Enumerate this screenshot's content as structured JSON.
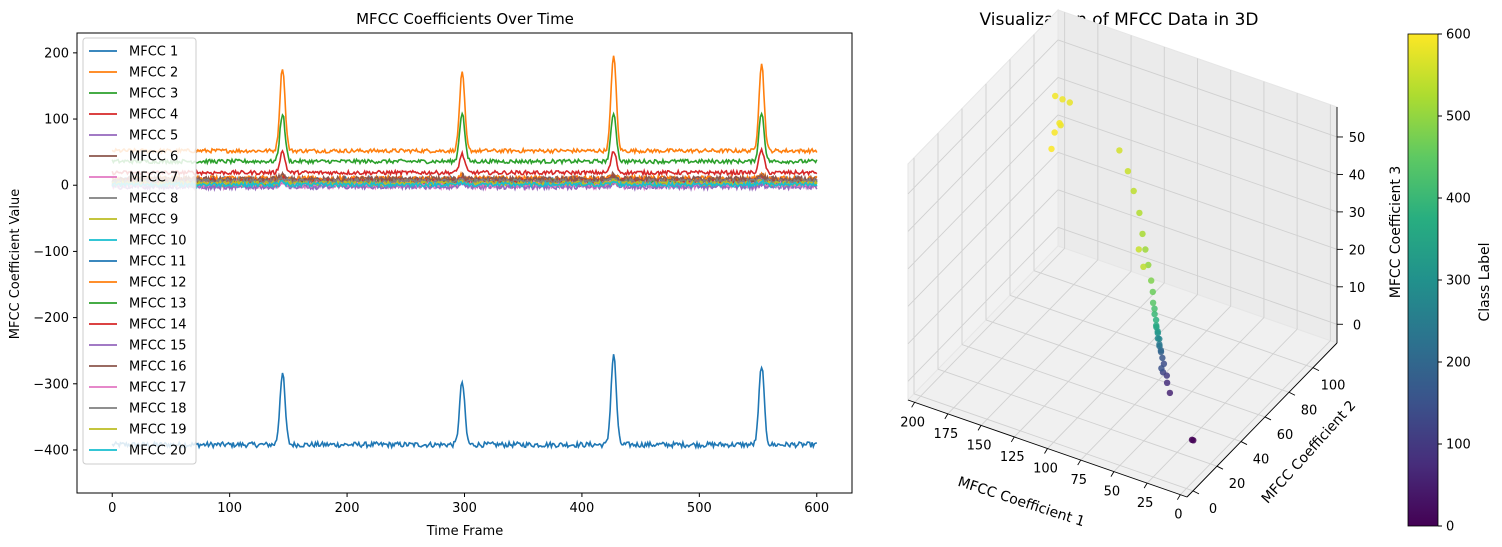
{
  "chart_data": [
    {
      "type": "line",
      "title": "MFCC Coefficients Over Time",
      "xlabel": "Time Frame",
      "ylabel": "MFCC Coefficient Value",
      "xlim": [
        -30,
        630
      ],
      "ylim": [
        -465,
        230
      ],
      "x_ticks": [
        0,
        100,
        200,
        300,
        400,
        500,
        600
      ],
      "y_ticks": [
        -400,
        -300,
        -200,
        -100,
        0,
        100,
        200
      ],
      "legend_position": "upper-left",
      "frames": 600,
      "peaks": [
        145,
        298,
        427,
        553
      ],
      "series": [
        {
          "name": "MFCC 1",
          "color": "#1f77b4",
          "baseline": -392,
          "noise": 4,
          "peak_heights": [
            108,
            95,
            137,
            120
          ]
        },
        {
          "name": "MFCC 2",
          "color": "#ff7f0e",
          "baseline": 52,
          "noise": 3,
          "peak_heights": [
            126,
            118,
            146,
            132
          ]
        },
        {
          "name": "MFCC 3",
          "color": "#2ca02c",
          "baseline": 36,
          "noise": 3,
          "peak_heights": [
            72,
            74,
            74,
            74
          ]
        },
        {
          "name": "MFCC 4",
          "color": "#d62728",
          "baseline": 19,
          "noise": 3,
          "peak_heights": [
            32,
            28,
            32,
            34
          ]
        },
        {
          "name": "MFCC 5",
          "color": "#9467bd",
          "baseline": 2,
          "noise": 5,
          "peak_heights": [
            6,
            5,
            6,
            6
          ]
        },
        {
          "name": "MFCC 6",
          "color": "#8c564b",
          "baseline": 8,
          "noise": 5,
          "peak_heights": [
            8,
            6,
            8,
            7
          ]
        },
        {
          "name": "MFCC 7",
          "color": "#e377c2",
          "baseline": 0,
          "noise": 5,
          "peak_heights": [
            5,
            6,
            6,
            5
          ]
        },
        {
          "name": "MFCC 8",
          "color": "#7f7f7f",
          "baseline": 5,
          "noise": 4,
          "peak_heights": [
            4,
            5,
            5,
            4
          ]
        },
        {
          "name": "MFCC 9",
          "color": "#bcbd22",
          "baseline": 3,
          "noise": 4,
          "peak_heights": [
            5,
            4,
            5,
            5
          ]
        },
        {
          "name": "MFCC 10",
          "color": "#17becf",
          "baseline": 1,
          "noise": 4,
          "peak_heights": [
            6,
            5,
            6,
            5
          ]
        },
        {
          "name": "MFCC 11",
          "color": "#1f77b4",
          "baseline": 7,
          "noise": 4,
          "peak_heights": [
            5,
            4,
            6,
            5
          ]
        },
        {
          "name": "MFCC 12",
          "color": "#ff7f0e",
          "baseline": 10,
          "noise": 4,
          "peak_heights": [
            6,
            5,
            6,
            6
          ]
        },
        {
          "name": "MFCC 13",
          "color": "#2ca02c",
          "baseline": 4,
          "noise": 4,
          "peak_heights": [
            5,
            4,
            5,
            4
          ]
        },
        {
          "name": "MFCC 14",
          "color": "#d62728",
          "baseline": 6,
          "noise": 4,
          "peak_heights": [
            5,
            5,
            6,
            5
          ]
        },
        {
          "name": "MFCC 15",
          "color": "#9467bd",
          "baseline": -2,
          "noise": 4,
          "peak_heights": [
            4,
            4,
            5,
            4
          ]
        },
        {
          "name": "MFCC 16",
          "color": "#8c564b",
          "baseline": 9,
          "noise": 4,
          "peak_heights": [
            5,
            4,
            5,
            5
          ]
        },
        {
          "name": "MFCC 17",
          "color": "#e377c2",
          "baseline": 2,
          "noise": 4,
          "peak_heights": [
            4,
            4,
            5,
            4
          ]
        },
        {
          "name": "MFCC 18",
          "color": "#7f7f7f",
          "baseline": 6,
          "noise": 3,
          "peak_heights": [
            4,
            3,
            4,
            4
          ]
        },
        {
          "name": "MFCC 19",
          "color": "#bcbd22",
          "baseline": 3,
          "noise": 3,
          "peak_heights": [
            4,
            3,
            4,
            4
          ]
        },
        {
          "name": "MFCC 20",
          "color": "#17becf",
          "baseline": 1,
          "noise": 3,
          "peak_heights": [
            4,
            3,
            4,
            4
          ]
        }
      ]
    },
    {
      "type": "scatter",
      "title": "Visualization of MFCC Data in 3D",
      "xlabel": "MFCC Coefficient 1",
      "ylabel": "MFCC Coefficient 2",
      "zlabel": "MFCC Coefficient 3",
      "xlim": [
        -5,
        205
      ],
      "ylim": [
        -5,
        120
      ],
      "zlim": [
        -5,
        58
      ],
      "x_ticks": [
        0,
        25,
        50,
        75,
        100,
        125,
        150,
        175,
        200
      ],
      "y_ticks": [
        0,
        20,
        40,
        60,
        80,
        100
      ],
      "z_ticks": [
        0,
        10,
        20,
        30,
        40,
        50
      ],
      "colorbar": {
        "label": "Class Label",
        "ticks": [
          0,
          100,
          200,
          300,
          400,
          500
        ],
        "range": [
          0,
          600
        ],
        "colormap": "viridis"
      },
      "points": [
        {
          "x": 2,
          "y": 8,
          "z": 5,
          "c": 0
        },
        {
          "x": 3,
          "y": 8,
          "z": 5,
          "c": 5
        },
        {
          "x": 35,
          "y": 25,
          "z": 8,
          "c": 60
        },
        {
          "x": 38,
          "y": 26,
          "z": 10,
          "c": 80
        },
        {
          "x": 40,
          "y": 28,
          "z": 11,
          "c": 100
        },
        {
          "x": 42,
          "y": 27,
          "z": 12,
          "c": 120
        },
        {
          "x": 44,
          "y": 30,
          "z": 13,
          "c": 140
        },
        {
          "x": 45,
          "y": 29,
          "z": 12,
          "c": 150
        },
        {
          "x": 46,
          "y": 31,
          "z": 14,
          "c": 160
        },
        {
          "x": 48,
          "y": 32,
          "z": 15,
          "c": 180
        },
        {
          "x": 49,
          "y": 33,
          "z": 15,
          "c": 200
        },
        {
          "x": 50,
          "y": 33,
          "z": 16,
          "c": 220
        },
        {
          "x": 51,
          "y": 34,
          "z": 16,
          "c": 240
        },
        {
          "x": 52,
          "y": 35,
          "z": 17,
          "c": 260
        },
        {
          "x": 53,
          "y": 35,
          "z": 17,
          "c": 280
        },
        {
          "x": 54,
          "y": 36,
          "z": 18,
          "c": 300
        },
        {
          "x": 55,
          "y": 37,
          "z": 18,
          "c": 320
        },
        {
          "x": 56,
          "y": 37,
          "z": 19,
          "c": 340
        },
        {
          "x": 57,
          "y": 38,
          "z": 19,
          "c": 360
        },
        {
          "x": 58,
          "y": 39,
          "z": 20,
          "c": 380
        },
        {
          "x": 60,
          "y": 40,
          "z": 21,
          "c": 400
        },
        {
          "x": 61,
          "y": 41,
          "z": 22,
          "c": 420
        },
        {
          "x": 63,
          "y": 42,
          "z": 23,
          "c": 440
        },
        {
          "x": 65,
          "y": 44,
          "z": 25,
          "c": 460
        },
        {
          "x": 68,
          "y": 46,
          "z": 27,
          "c": 480
        },
        {
          "x": 72,
          "y": 48,
          "z": 30,
          "c": 500
        },
        {
          "x": 76,
          "y": 50,
          "z": 33,
          "c": 510
        },
        {
          "x": 80,
          "y": 52,
          "z": 36,
          "c": 520
        },
        {
          "x": 85,
          "y": 55,
          "z": 40,
          "c": 530
        },
        {
          "x": 92,
          "y": 58,
          "z": 44,
          "c": 540
        },
        {
          "x": 100,
          "y": 62,
          "z": 47,
          "c": 550
        },
        {
          "x": 110,
          "y": 66,
          "z": 50,
          "c": 560
        },
        {
          "x": 82,
          "y": 55,
          "z": 26,
          "c": 540
        },
        {
          "x": 90,
          "y": 60,
          "z": 28,
          "c": 550
        },
        {
          "x": 160,
          "y": 80,
          "z": 52,
          "c": 580
        },
        {
          "x": 170,
          "y": 85,
          "z": 50,
          "c": 585
        },
        {
          "x": 180,
          "y": 90,
          "z": 48,
          "c": 590
        },
        {
          "x": 175,
          "y": 88,
          "z": 42,
          "c": 590
        },
        {
          "x": 185,
          "y": 95,
          "z": 36,
          "c": 595
        },
        {
          "x": 190,
          "y": 98,
          "z": 30,
          "c": 598
        },
        {
          "x": 165,
          "y": 78,
          "z": 46,
          "c": 582
        }
      ]
    }
  ]
}
